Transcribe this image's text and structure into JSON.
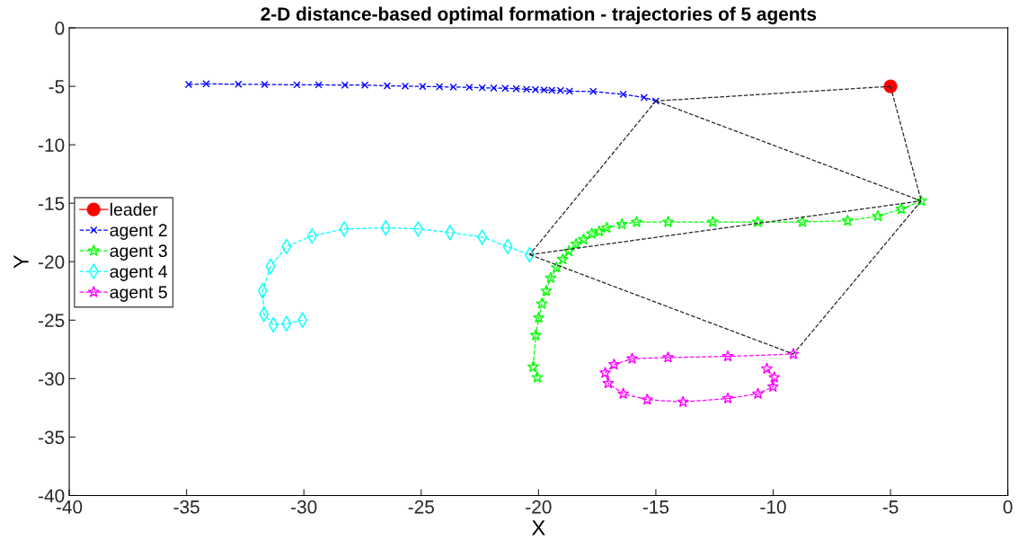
{
  "chart_data": {
    "type": "line",
    "title": "2-D distance-based optimal formation - trajectories of 5 agents",
    "xlabel": "X",
    "ylabel": "Y",
    "xlim": [
      -40,
      0
    ],
    "xticks": [
      -40,
      -35,
      -30,
      -25,
      -20,
      -15,
      -10,
      -5,
      0
    ],
    "ylim": [
      -40,
      0
    ],
    "yticks": [
      -40,
      -35,
      -30,
      -25,
      -20,
      -15,
      -10,
      -5,
      0
    ],
    "grid": false,
    "legend": "left",
    "series": [
      {
        "name": "leader",
        "color": "#ff0000",
        "marker": "circle",
        "line_style": "solid",
        "x": [
          -5
        ],
        "values": [
          -5
        ]
      },
      {
        "name": "agent 2",
        "color": "#0000ff",
        "marker": "cross",
        "line_style": "dashed",
        "x": [
          -34.91,
          -34.16,
          -32.79,
          -31.67,
          -30.3,
          -29.37,
          -28.25,
          -27.4,
          -26.45,
          -25.68,
          -24.94,
          -24.22,
          -23.63,
          -22.95,
          -22.4,
          -21.91,
          -21.42,
          -20.95,
          -20.51,
          -20.13,
          -19.76,
          -19.43,
          -19.06,
          -18.68,
          -17.67,
          -16.39,
          -15.5,
          -15.0
        ],
        "values": [
          -4.84,
          -4.78,
          -4.82,
          -4.84,
          -4.87,
          -4.87,
          -4.89,
          -4.89,
          -4.95,
          -4.98,
          -5.01,
          -5.03,
          -5.06,
          -5.08,
          -5.12,
          -5.15,
          -5.17,
          -5.2,
          -5.25,
          -5.28,
          -5.31,
          -5.34,
          -5.36,
          -5.42,
          -5.44,
          -5.69,
          -5.95,
          -6.25
        ]
      },
      {
        "name": "agent 3",
        "color": "#00ff00",
        "marker": "star",
        "line_style": "dashed",
        "x": [
          -20.05,
          -20.23,
          -20.12,
          -19.99,
          -19.86,
          -19.67,
          -19.48,
          -19.23,
          -18.97,
          -18.71,
          -18.4,
          -18.08,
          -17.73,
          -17.41,
          -17.09,
          -16.45,
          -15.82,
          -14.48,
          -12.57,
          -10.66,
          -8.75,
          -6.83,
          -5.54,
          -4.54,
          -3.69
        ],
        "values": [
          -29.9,
          -29.0,
          -26.3,
          -24.8,
          -23.6,
          -22.5,
          -21.4,
          -20.5,
          -19.8,
          -19.1,
          -18.5,
          -18.1,
          -17.6,
          -17.4,
          -17.1,
          -16.8,
          -16.6,
          -16.6,
          -16.6,
          -16.6,
          -16.6,
          -16.5,
          -16.1,
          -15.5,
          -14.8
        ]
      },
      {
        "name": "agent 4",
        "color": "#00ffff",
        "marker": "diamond",
        "line_style": "dashed",
        "x": [
          -30.06,
          -30.74,
          -31.3,
          -31.7,
          -31.76,
          -31.42,
          -30.74,
          -29.65,
          -28.28,
          -26.51,
          -25.13,
          -23.77,
          -22.4,
          -21.31,
          -20.38
        ],
        "values": [
          -25.0,
          -25.3,
          -25.4,
          -24.5,
          -22.5,
          -20.4,
          -18.7,
          -17.8,
          -17.2,
          -17.1,
          -17.2,
          -17.5,
          -17.9,
          -18.7,
          -19.4
        ]
      },
      {
        "name": "agent 5",
        "color": "#ff00ff",
        "marker": "star",
        "line_style": "dashed",
        "x": [
          -10.27,
          -9.95,
          -10.01,
          -10.65,
          -11.93,
          -13.84,
          -15.37,
          -16.39,
          -17.03,
          -17.16,
          -16.78,
          -16.01,
          -14.48,
          -11.93,
          -9.14
        ],
        "values": [
          -29.15,
          -29.9,
          -30.7,
          -31.3,
          -31.7,
          -32.0,
          -31.8,
          -31.3,
          -30.4,
          -29.5,
          -28.8,
          -28.3,
          -28.2,
          -28.1,
          -27.9
        ]
      },
      {
        "color": "#262626",
        "marker": "none",
        "line_style": "dashed",
        "x": [
          -5,
          -15.0
        ],
        "values": [
          -5,
          -6.25
        ]
      },
      {
        "color": "#262626",
        "marker": "none",
        "line_style": "dashed",
        "x": [
          -5,
          -3.69
        ],
        "values": [
          -5,
          -14.8
        ]
      },
      {
        "color": "#262626",
        "marker": "none",
        "line_style": "dashed",
        "x": [
          -15.0,
          -3.69
        ],
        "values": [
          -6.25,
          -14.8
        ]
      },
      {
        "color": "#262626",
        "marker": "none",
        "line_style": "dashed",
        "x": [
          -15.0,
          -20.38
        ],
        "values": [
          -6.25,
          -19.4
        ]
      },
      {
        "color": "#262626",
        "marker": "none",
        "line_style": "dashed",
        "x": [
          -20.38,
          -3.69
        ],
        "values": [
          -19.4,
          -14.8
        ]
      },
      {
        "color": "#262626",
        "marker": "none",
        "line_style": "dashed",
        "x": [
          -20.38,
          -9.14
        ],
        "values": [
          -19.4,
          -27.9
        ]
      },
      {
        "color": "#262626",
        "marker": "none",
        "line_style": "dashed",
        "x": [
          -3.69,
          -9.14
        ],
        "values": [
          -14.8,
          -27.9
        ]
      }
    ]
  }
}
